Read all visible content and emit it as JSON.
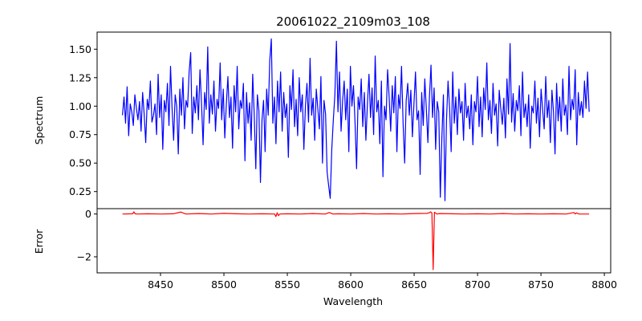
{
  "chart_data": {
    "type": "line",
    "title": "20061022_2109m03_108",
    "xlabel": "Wavelength",
    "xlim": [
      8400,
      8805
    ],
    "xticks": [
      8450,
      8500,
      8550,
      8600,
      8650,
      8700,
      8750,
      8800
    ],
    "x_range": [
      8420,
      8788
    ],
    "panels": [
      {
        "name": "spectrum",
        "ylabel": "Spectrum",
        "ylim": [
          0.1,
          1.65
        ],
        "yticks": [
          "0.25",
          "0.50",
          "0.75",
          "1.00",
          "1.25",
          "1.50"
        ],
        "color": "#0000ff",
        "series": [
          {
            "values": [
              0.92,
              1.08,
              0.85,
              1.17,
              0.74,
              1.02,
              0.95,
              0.83,
              1.1,
              0.98,
              0.88,
              1.04,
              0.78,
              1.12,
              0.93,
              0.68,
              1.06,
              0.97,
              1.22,
              0.86,
              0.92,
              1.02,
              0.75,
              1.28,
              0.9,
              1.1,
              0.62,
              1.05,
              0.95,
              1.2,
              0.83,
              1.35,
              0.98,
              0.7,
              1.1,
              1.0,
              0.58,
              1.15,
              0.92,
              1.25,
              0.8,
              1.05,
              0.99,
              1.3,
              1.47,
              0.76,
              1.08,
              0.94,
              1.18,
              0.88,
              1.32,
              1.02,
              0.66,
              1.12,
              0.97,
              1.52,
              0.85,
              1.1,
              0.93,
              1.22,
              0.78,
              1.06,
              0.98,
              1.38,
              0.88,
              1.15,
              0.72,
              1.02,
              1.26,
              0.9,
              1.08,
              0.63,
              1.18,
              0.95,
              1.35,
              0.8,
              1.05,
              0.98,
              1.2,
              0.52,
              1.12,
              0.85,
              1.03,
              0.7,
              1.28,
              0.92,
              0.45,
              1.1,
              0.96,
              0.33,
              0.88,
              1.05,
              0.6,
              1.15,
              0.92,
              1.4,
              1.59,
              0.85,
              1.08,
              0.67,
              1.22,
              0.95,
              1.3,
              0.78,
              1.12,
              0.9,
              1.02,
              0.55,
              1.18,
              0.97,
              1.32,
              0.82,
              1.06,
              0.74,
              1.25,
              0.95,
              1.1,
              0.62,
              1.0,
              1.2,
              0.86,
              1.42,
              0.92,
              1.07,
              0.7,
              1.15,
              0.98,
              0.8,
              1.26,
              0.5,
              1.05,
              0.93,
              0.42,
              0.3,
              0.19,
              0.62,
              0.88,
              1.1,
              1.57,
              0.95,
              1.3,
              0.78,
              1.05,
              1.22,
              0.88,
              1.15,
              0.6,
              1.35,
              1.0,
              1.18,
              0.86,
              0.45,
              1.08,
              0.97,
              1.24,
              0.82,
              1.12,
              0.7,
              1.02,
              1.28,
              0.9,
              1.16,
              0.75,
              1.44,
              0.95,
              1.05,
              0.67,
              1.22,
              0.38,
              1.0,
              0.88,
              1.32,
              1.08,
              0.78,
              1.18,
              0.94,
              1.26,
              0.6,
              1.1,
              0.98,
              1.35,
              0.85,
              0.5,
              1.05,
              1.2,
              0.92,
              1.14,
              0.73,
              1.02,
              1.3,
              0.88,
              0.96,
              0.4,
              1.12,
              0.83,
              1.24,
              0.97,
              0.68,
              1.08,
              1.36,
              0.9,
              1.16,
              0.62,
              1.04,
              0.95,
              0.2,
              0.72,
              1.1,
              0.17,
              0.88,
              1.22,
              0.98,
              0.6,
              1.3,
              0.85,
              1.08,
              0.75,
              1.15,
              0.94,
              1.04,
              0.7,
              1.2,
              0.9,
              1.0,
              0.8,
              1.1,
              0.66,
              1.04,
              0.95,
              1.26,
              0.82,
              1.08,
              0.73,
              1.16,
              0.97,
              1.38,
              0.88,
              1.05,
              0.76,
              1.2,
              0.92,
              1.02,
              0.65,
              1.14,
              0.98,
              0.84,
              1.07,
              0.72,
              1.24,
              0.93,
              1.55,
              0.86,
              1.11,
              0.78,
              1.05,
              0.96,
              1.18,
              0.74,
              1.3,
              0.9,
              1.02,
              0.82,
              1.1,
              0.63,
              1.0,
              0.94,
              1.22,
              0.85,
              1.07,
              0.73,
              1.15,
              0.97,
              0.8,
              1.26,
              0.9,
              1.05,
              0.68,
              1.14,
              0.95,
              0.58,
              1.2,
              0.87,
              1.08,
              0.78,
              1.24,
              0.92,
              1.01,
              0.75,
              1.35,
              0.88,
              1.06,
              0.97,
              1.32,
              0.66,
              1.12,
              0.92,
              1.04,
              0.9,
              1.22,
              0.98,
              1.3,
              0.95
            ]
          }
        ]
      },
      {
        "name": "error",
        "ylabel": "Error",
        "ylim": [
          -2.75,
          0.25
        ],
        "yticks": [
          "0",
          "−2"
        ],
        "color": "#ff0000",
        "series": [
          {
            "x": [
              8420,
              8428,
              8429,
              8430,
              8432,
              8440,
              8450,
              8460,
              8466,
              8470,
              8480,
              8490,
              8500,
              8505,
              8510,
              8520,
              8530,
              8540,
              8541,
              8542,
              8543,
              8544,
              8550,
              8560,
              8570,
              8580,
              8583,
              8586,
              8590,
              8600,
              8610,
              8620,
              8630,
              8640,
              8650,
              8660,
              8662,
              8663,
              8664,
              8665,
              8666,
              8667,
              8668,
              8670,
              8680,
              8690,
              8700,
              8710,
              8720,
              8730,
              8740,
              8750,
              8760,
              8770,
              8776,
              8777,
              8778,
              8780,
              8788
            ],
            "values": [
              0.0,
              0.01,
              0.1,
              0.01,
              0.0,
              0.01,
              0.0,
              0.01,
              0.09,
              0.0,
              0.02,
              0.0,
              0.03,
              0.02,
              0.01,
              0.0,
              0.01,
              0.0,
              -0.12,
              0.06,
              -0.08,
              0.0,
              0.01,
              0.0,
              0.02,
              0.0,
              0.07,
              0.0,
              0.01,
              0.0,
              0.02,
              0.0,
              0.01,
              0.0,
              0.02,
              0.03,
              0.06,
              0.1,
              0.05,
              -2.6,
              0.08,
              0.04,
              0.0,
              0.02,
              0.01,
              0.0,
              0.01,
              0.0,
              0.02,
              0.0,
              0.01,
              0.0,
              0.01,
              0.0,
              0.07,
              0.0,
              0.05,
              0.0,
              0.0
            ]
          }
        ]
      }
    ]
  }
}
